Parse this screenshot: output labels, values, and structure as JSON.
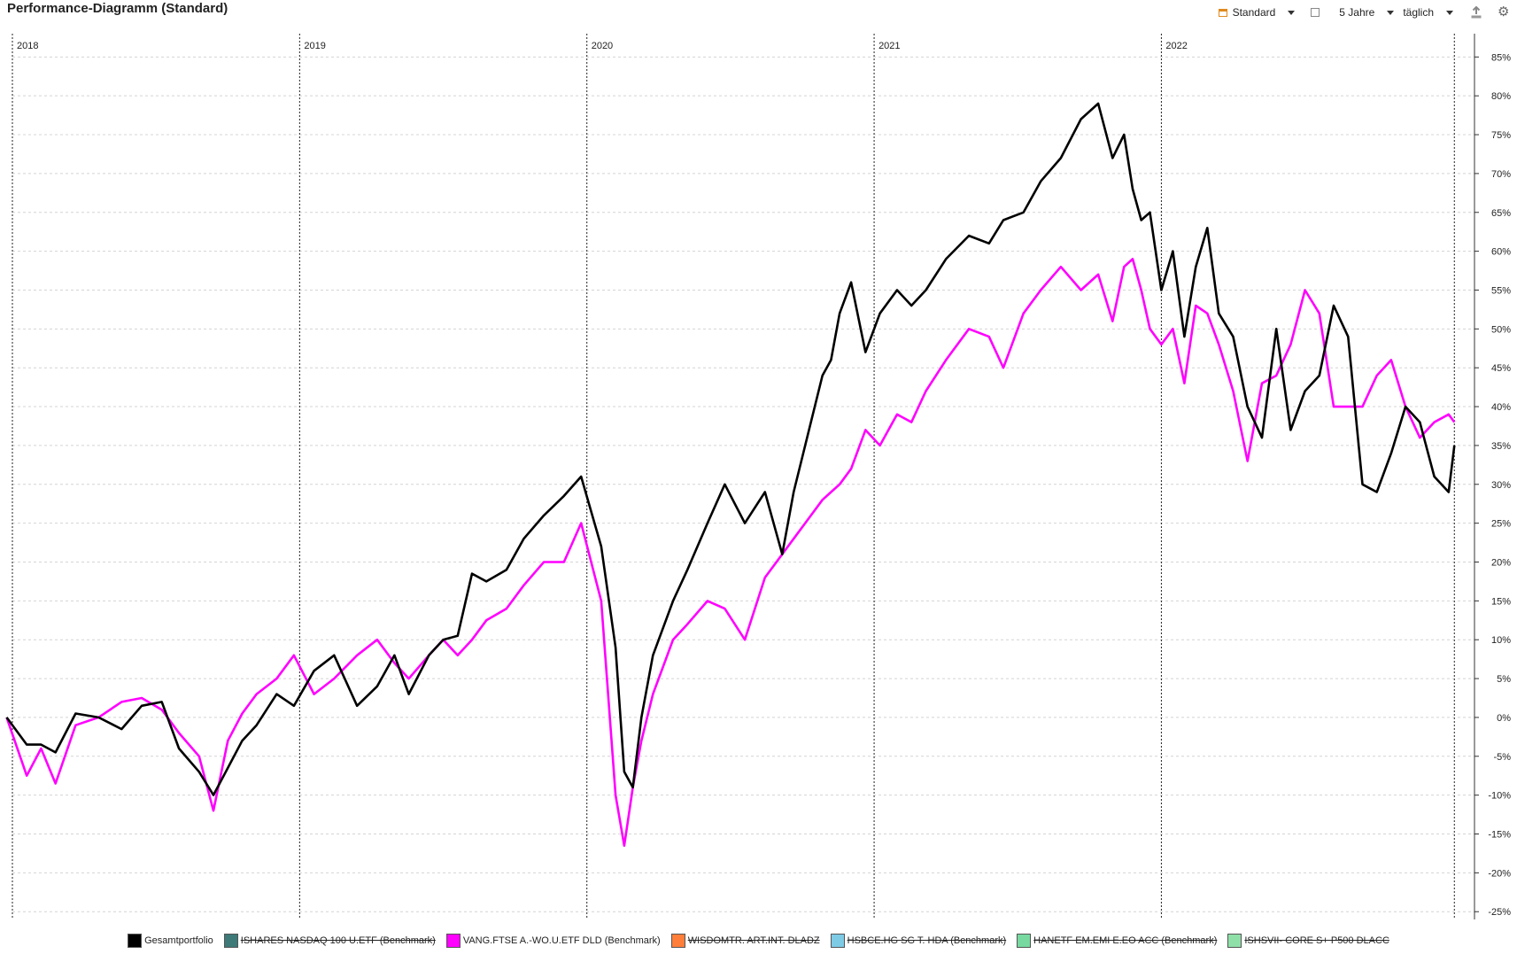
{
  "header": {
    "title": "Performance-Diagramm (Standard)",
    "layout_label": "Standard",
    "period_label": "5 Jahre",
    "interval_label": "täglich"
  },
  "icons": {
    "layout": "calendar-icon",
    "window": "window-icon",
    "export": "export-icon",
    "settings": "gear-icon"
  },
  "chart_data": {
    "type": "line",
    "x_years": [
      "2018",
      "2019",
      "2020",
      "2021",
      "2022"
    ],
    "ylim": [
      -26,
      88
    ],
    "y_ticks": [
      85,
      80,
      75,
      70,
      65,
      60,
      55,
      50,
      45,
      40,
      35,
      30,
      25,
      20,
      15,
      10,
      5,
      0,
      -5,
      -10,
      -15,
      -20,
      -25
    ],
    "y_tick_labels": [
      "85%",
      "80%",
      "75%",
      "70%",
      "65%",
      "60%",
      "55%",
      "50%",
      "45%",
      "40%",
      "35%",
      "30%",
      "25%",
      "20%",
      "15%",
      "10%",
      "5%",
      "0%",
      "-5%",
      "-10%",
      "-15%",
      "-20%",
      "-25%"
    ],
    "grid": true,
    "legend": "bottom",
    "x": [
      2017.98,
      2018.05,
      2018.1,
      2018.15,
      2018.22,
      2018.3,
      2018.38,
      2018.45,
      2018.52,
      2018.58,
      2018.65,
      2018.7,
      2018.75,
      2018.8,
      2018.85,
      2018.92,
      2018.98,
      2019.05,
      2019.12,
      2019.2,
      2019.27,
      2019.33,
      2019.38,
      2019.45,
      2019.5,
      2019.55,
      2019.6,
      2019.65,
      2019.72,
      2019.78,
      2019.85,
      2019.92,
      2019.98,
      2020.05,
      2020.1,
      2020.13,
      2020.16,
      2020.19,
      2020.21,
      2020.23,
      2020.27,
      2020.3,
      2020.35,
      2020.42,
      2020.48,
      2020.55,
      2020.62,
      2020.68,
      2020.72,
      2020.78,
      2020.82,
      2020.85,
      2020.88,
      2020.92,
      2020.97,
      2021.02,
      2021.08,
      2021.13,
      2021.18,
      2021.25,
      2021.33,
      2021.4,
      2021.45,
      2021.52,
      2021.58,
      2021.65,
      2021.72,
      2021.78,
      2021.83,
      2021.87,
      2021.9,
      2021.93,
      2021.96,
      2022.0,
      2022.04,
      2022.08,
      2022.12,
      2022.16,
      2022.2,
      2022.25,
      2022.3,
      2022.35,
      2022.4,
      2022.45,
      2022.5,
      2022.55,
      2022.6,
      2022.65,
      2022.7,
      2022.75,
      2022.8,
      2022.85,
      2022.9,
      2022.95,
      2023.0,
      2023.02
    ],
    "series": [
      {
        "name": "Gesamtportfolio",
        "color": "#000000",
        "values": [
          0,
          -3.5,
          -3.5,
          -4.5,
          0.5,
          0,
          -1.5,
          1.5,
          2,
          -4,
          -7,
          -10,
          -6.5,
          -3,
          -1,
          3,
          1.5,
          6,
          8,
          1.5,
          4,
          8,
          3,
          8,
          10,
          10.5,
          18.5,
          17.5,
          19,
          23,
          26,
          28.5,
          31,
          22,
          9,
          -7,
          -9,
          0,
          4,
          8,
          12,
          15,
          19,
          25,
          30,
          25,
          29,
          21,
          29,
          38,
          44,
          46,
          52,
          56,
          47,
          52,
          55,
          53,
          55,
          59,
          62,
          61,
          64,
          65,
          69,
          72,
          77,
          79,
          72,
          75,
          68,
          64,
          65,
          55,
          60,
          49,
          58,
          63,
          52,
          49,
          40,
          36,
          50,
          37,
          42,
          44,
          53,
          49,
          30,
          29,
          34,
          40,
          38,
          31,
          29,
          35
        ]
      },
      {
        "name": "VANG.FTSE A.-WO.U.ETF DLD (Benchmark)",
        "color": "#ff00ff",
        "values": [
          0,
          -7.5,
          -4,
          -8.5,
          -1,
          0,
          2,
          2.5,
          1,
          -2,
          -5,
          -12,
          -3,
          0.5,
          3,
          5,
          8,
          3,
          5,
          8,
          10,
          7,
          5,
          8,
          10,
          8,
          10,
          12.5,
          14,
          17,
          20,
          20,
          25,
          15,
          -10,
          -16.5,
          -9,
          -3,
          0,
          3,
          7,
          10,
          12,
          15,
          14,
          10,
          18,
          21,
          23,
          26,
          28,
          29,
          30,
          32,
          37,
          35,
          39,
          38,
          42,
          46,
          50,
          49,
          45,
          52,
          55,
          58,
          55,
          57,
          51,
          58,
          59,
          55,
          50,
          48,
          50,
          43,
          53,
          52,
          48,
          42,
          33,
          43,
          44,
          48,
          55,
          52,
          40,
          40,
          40,
          44,
          46,
          40,
          36,
          38,
          39,
          38
        ]
      }
    ]
  },
  "legend": [
    {
      "label": "Gesamtportfolio",
      "color": "#000000",
      "active": true
    },
    {
      "label": "ISHARES NASDAQ 100 U.ETF (Benchmark)",
      "color": "#3d7a78",
      "active": false
    },
    {
      "label": "VANG.FTSE A.-WO.U.ETF DLD (Benchmark)",
      "color": "#ff00ff",
      "active": true
    },
    {
      "label": "WISDOMTR. ART.INT. DLADZ",
      "color": "#ff7f3a",
      "active": false
    },
    {
      "label": "HSBCE.HG SG T. HDA (Benchmark)",
      "color": "#7ecbe6",
      "active": false
    },
    {
      "label": "HANETF EM.EMI  E.EO ACC (Benchmark)",
      "color": "#77d9a0",
      "active": false
    },
    {
      "label": "ISHSVII- CORE S+ P500 DLACC",
      "color": "#8fe0a8",
      "active": false
    }
  ]
}
